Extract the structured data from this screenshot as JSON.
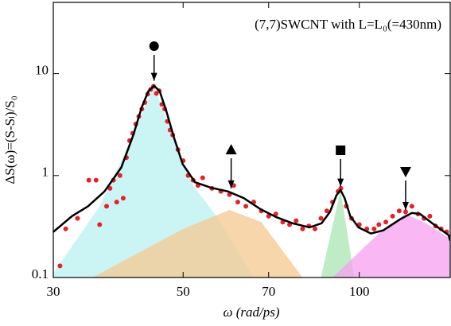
{
  "chart_data": {
    "type": "scatter",
    "title": "(7,7)SWCNT with L=L₀(=430nm)",
    "x_label": "ω (rad/ps)",
    "y_label": "ΔS(ω)=(S-Sₗ)/S₀",
    "xlog": true,
    "ylog": true,
    "xlim": [
      30,
      143
    ],
    "ylim": [
      0.1,
      50
    ],
    "xticks": [
      30,
      50,
      70,
      100
    ],
    "yticks": [
      0.1,
      1,
      10
    ],
    "scatter": {
      "color": "#e8202a",
      "x": [
        30.8,
        31.5,
        33,
        34.5,
        35.5,
        36,
        37,
        37.5,
        38,
        38.5,
        39,
        39.5,
        40,
        40.5,
        41,
        41.5,
        42,
        42.5,
        43,
        43.5,
        44,
        44.5,
        45,
        45.5,
        46,
        46.5,
        47,
        47.5,
        48,
        49,
        50,
        51,
        52,
        53,
        54,
        56,
        58,
        60,
        61,
        62,
        64,
        66,
        68,
        70,
        72,
        74,
        76,
        78,
        80,
        82,
        84,
        86,
        88,
        90,
        92,
        93,
        95,
        97,
        100,
        103,
        106,
        108,
        111,
        114,
        117,
        120,
        123,
        126,
        129,
        132,
        135,
        138,
        141
      ],
      "y": [
        0.13,
        0.3,
        0.38,
        0.9,
        0.9,
        0.33,
        0.5,
        0.75,
        0.9,
        0.55,
        1.0,
        0.6,
        1.5,
        2.2,
        2.6,
        3.2,
        3.8,
        4.5,
        5.2,
        6.3,
        7.0,
        7.5,
        6.4,
        6.8,
        5.0,
        4.5,
        3.4,
        2.8,
        2.5,
        1.8,
        1.4,
        1.0,
        0.9,
        0.8,
        0.95,
        0.75,
        0.7,
        0.65,
        0.8,
        0.55,
        0.5,
        0.55,
        0.45,
        0.4,
        0.42,
        0.35,
        0.33,
        0.36,
        0.3,
        0.32,
        0.3,
        0.38,
        0.45,
        0.55,
        0.7,
        0.75,
        0.5,
        0.38,
        0.33,
        0.3,
        0.3,
        0.33,
        0.35,
        0.4,
        0.45,
        0.44,
        0.5,
        0.42,
        0.38,
        0.4,
        0.32,
        0.3,
        0.28
      ]
    },
    "fit": {
      "color": "#000000",
      "x": [
        30,
        32.3,
        34.4,
        36.7,
        39.2,
        41.1,
        42.5,
        43.6,
        44.6,
        45.6,
        46.8,
        48.3,
        49.9,
        52.4,
        55.8,
        59.6,
        63.5,
        67.7,
        72.2,
        77.0,
        82.2,
        86.2,
        89.1,
        91.4,
        92.9,
        94.4,
        96.5,
        99.7,
        104.7,
        109.9,
        117.2,
        123.0,
        127.0,
        133.3,
        142.1,
        143
      ],
      "y": [
        0.28,
        0.4,
        0.5,
        0.7,
        1.2,
        2.5,
        4.7,
        6.7,
        7.6,
        6.7,
        4.3,
        2.3,
        1.3,
        0.86,
        0.76,
        0.7,
        0.6,
        0.47,
        0.39,
        0.34,
        0.31,
        0.34,
        0.44,
        0.64,
        0.72,
        0.6,
        0.4,
        0.31,
        0.27,
        0.29,
        0.37,
        0.43,
        0.42,
        0.34,
        0.26,
        0.23
      ]
    },
    "areas": [
      {
        "color": "#b8f2f0",
        "x": [
          30,
          36,
          41,
          44.6,
          48,
          52,
          57,
          66
        ],
        "y": [
          0.11,
          0.5,
          2.4,
          7.6,
          2.4,
          0.8,
          0.4,
          0.1
        ]
      },
      {
        "color": "#f5c890",
        "x": [
          35,
          50,
          60,
          68,
          80
        ],
        "y": [
          0.1,
          0.3,
          0.46,
          0.35,
          0.1
        ]
      },
      {
        "color": "#a8e6b0",
        "x": [
          86,
          92.9,
          98
        ],
        "y": [
          0.1,
          0.72,
          0.1
        ]
      },
      {
        "color": "#f7a0f0",
        "x": [
          90,
          110,
          120,
          130,
          143
        ],
        "y": [
          0.1,
          0.3,
          0.42,
          0.34,
          0.24
        ]
      }
    ],
    "markers": [
      {
        "shape": "circle",
        "x": 44.6,
        "y": 18.6,
        "arrow_to": 8.5
      },
      {
        "shape": "triangle-up",
        "x": 60.4,
        "y": 1.8,
        "arrow_to": 0.75
      },
      {
        "shape": "square",
        "x": 92.9,
        "y": 1.77,
        "arrow_to": 0.78
      },
      {
        "shape": "triangle-down",
        "x": 120,
        "y": 1.09,
        "arrow_to": 0.46
      }
    ]
  }
}
